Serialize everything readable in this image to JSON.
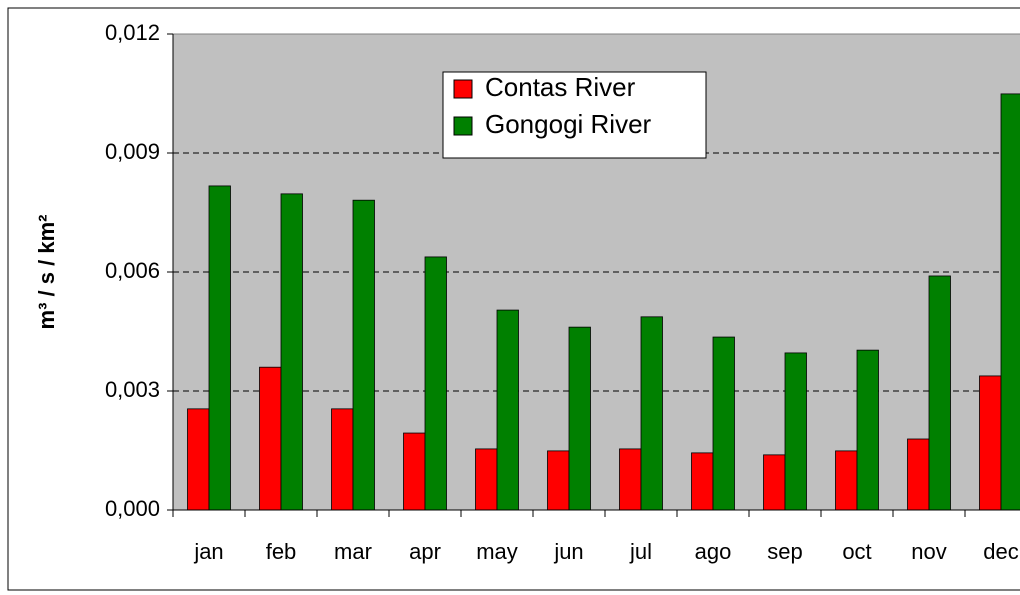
{
  "chart_data": {
    "type": "bar",
    "y_label": "m³ / s / km²",
    "categories": [
      "jan",
      "feb",
      "mar",
      "apr",
      "may",
      "jun",
      "jul",
      "ago",
      "sep",
      "oct",
      "nov",
      "dec"
    ],
    "series": [
      {
        "name": "Contas River",
        "color": "#ff0000",
        "values": [
          0.00255,
          0.0036,
          0.00255,
          0.00194,
          0.00154,
          0.00149,
          0.00154,
          0.00144,
          0.00139,
          0.00149,
          0.00179,
          0.00338
        ]
      },
      {
        "name": "Gongogi River",
        "color": "#008000",
        "values": [
          0.00817,
          0.00797,
          0.00781,
          0.00638,
          0.00504,
          0.00461,
          0.00487,
          0.00436,
          0.00396,
          0.00403,
          0.0059,
          0.01049
        ]
      }
    ],
    "ylim": [
      0,
      0.012
    ],
    "yticks": [
      {
        "value": 0,
        "label": "0,000"
      },
      {
        "value": 0.003,
        "label": "0,003"
      },
      {
        "value": 0.006,
        "label": "0,006"
      },
      {
        "value": 0.009,
        "label": "0,009"
      },
      {
        "value": 0.012,
        "label": "0,012"
      }
    ],
    "grid": true,
    "legend": "top"
  }
}
